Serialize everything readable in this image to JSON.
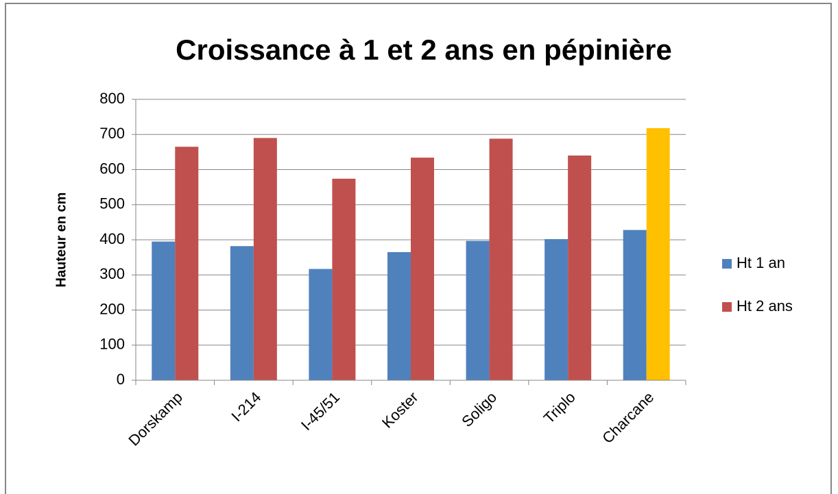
{
  "chart_data": {
    "type": "bar",
    "title": "Croissance à 1 et 2 ans en pépinière",
    "y_label": "Hauteur en cm",
    "categories": [
      "Dorskamp",
      "I-214",
      "I-45/51",
      "Koster",
      "Soligo",
      "Triplo",
      "Charcane"
    ],
    "series": [
      {
        "name": "Ht 1 an",
        "color": "#4f81bd",
        "values": [
          395,
          382,
          317,
          365,
          397,
          402,
          428
        ]
      },
      {
        "name": "Ht 2 ans",
        "color": "#c0504d",
        "values": [
          665,
          690,
          574,
          634,
          688,
          640,
          718
        ],
        "colors": [
          "#c0504d",
          "#c0504d",
          "#c0504d",
          "#c0504d",
          "#c0504d",
          "#c0504d",
          "#ffc000"
        ]
      }
    ],
    "ylim": [
      0,
      800
    ],
    "yticks": [
      0,
      100,
      200,
      300,
      400,
      500,
      600,
      700,
      800
    ],
    "grid": true,
    "legend": "right"
  }
}
